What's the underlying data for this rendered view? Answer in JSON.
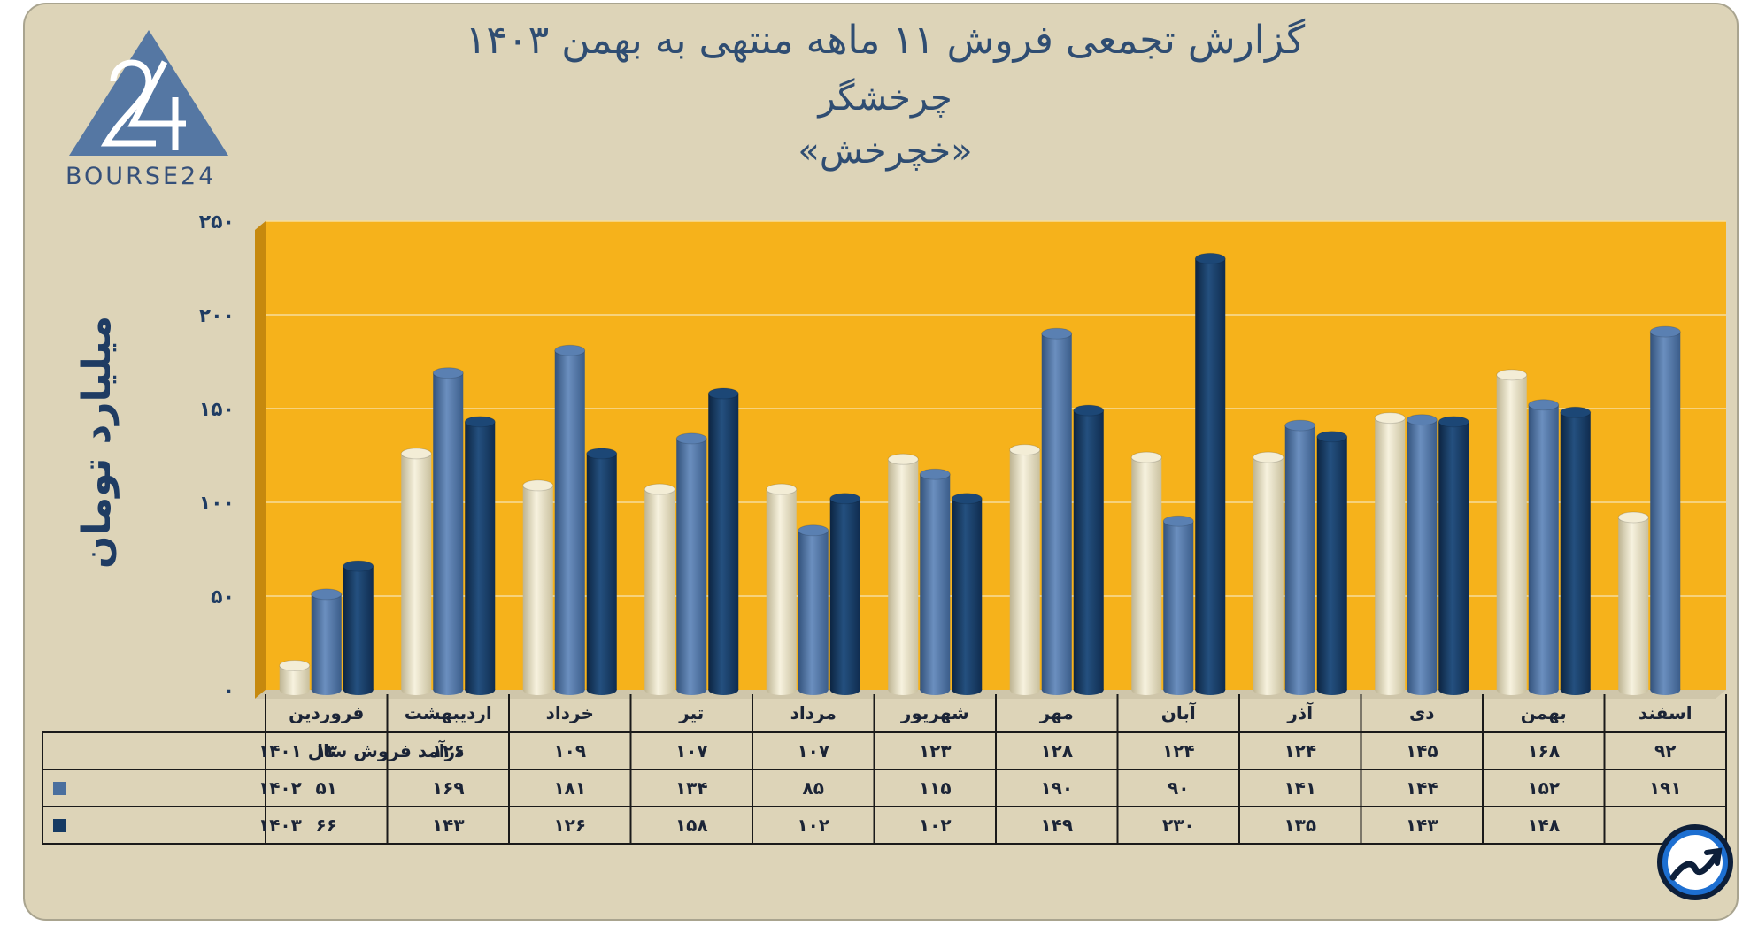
{
  "title": {
    "line1": "گزارش تجمعی فروش ۱۱ ماهه منتهی به بهمن ۱۴۰۳",
    "line2": "چرخشگر",
    "line3": "«خچرخش»"
  },
  "logo": {
    "text": "BOURSE24"
  },
  "colors": {
    "plot_bg": "#f6b21b",
    "series_1401": "#e8e1c7",
    "series_1402": "#4a6f9e",
    "series_1403": "#163a63",
    "frame_bg": "#ddd4b8"
  },
  "chart_data": {
    "type": "bar",
    "ylabel": "میلیارد تومان",
    "ylim": [
      0,
      250
    ],
    "yticks": [
      0,
      50,
      100,
      150,
      200,
      250
    ],
    "ytick_labels": [
      "۰",
      "۵۰",
      "۱۰۰",
      "۱۵۰",
      "۲۰۰",
      "۲۵۰"
    ],
    "categories": [
      "فروردین",
      "اردیبهشت",
      "خرداد",
      "تیر",
      "مرداد",
      "شهریور",
      "مهر",
      "آبان",
      "آذر",
      "دی",
      "بهمن",
      "اسفند"
    ],
    "grid": true,
    "series": [
      {
        "name": "درآمد فروش سال ۱۴۰۱",
        "values": [
          13,
          126,
          109,
          107,
          107,
          123,
          128,
          124,
          124,
          145,
          168,
          92
        ],
        "labels": [
          "۱۳",
          "۱۲۶",
          "۱۰۹",
          "۱۰۷",
          "۱۰۷",
          "۱۲۳",
          "۱۲۸",
          "۱۲۴",
          "۱۲۴",
          "۱۴۵",
          "۱۶۸",
          "۹۲"
        ]
      },
      {
        "name": "۱۴۰۲",
        "values": [
          51,
          169,
          181,
          134,
          85,
          115,
          190,
          90,
          141,
          144,
          152,
          191
        ],
        "labels": [
          "۵۱",
          "۱۶۹",
          "۱۸۱",
          "۱۳۴",
          "۸۵",
          "۱۱۵",
          "۱۹۰",
          "۹۰",
          "۱۴۱",
          "۱۴۴",
          "۱۵۲",
          "۱۹۱"
        ]
      },
      {
        "name": "۱۴۰۳",
        "values": [
          66,
          143,
          126,
          158,
          102,
          102,
          149,
          230,
          135,
          143,
          148,
          null
        ],
        "labels": [
          "۶۶",
          "۱۴۳",
          "۱۲۶",
          "۱۵۸",
          "۱۰۲",
          "۱۰۲",
          "۱۴۹",
          "۲۳۰",
          "۱۳۵",
          "۱۴۳",
          "۱۴۸",
          ""
        ]
      }
    ]
  }
}
